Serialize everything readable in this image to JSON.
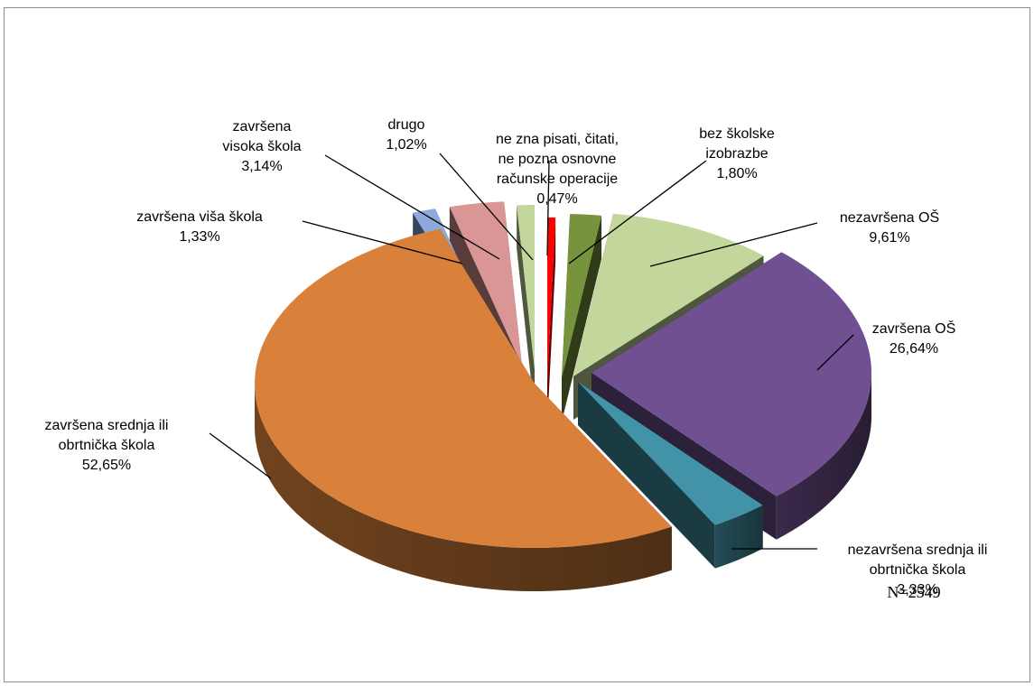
{
  "chart_data": {
    "type": "pie",
    "style": "3d-exploded",
    "note": "N=2549",
    "slices": [
      {
        "key": "ne_zna",
        "lines": [
          "ne zna pisati, čitati,",
          "ne pozna osnovne",
          "računske operacije",
          "0,47%"
        ],
        "value": 0.47,
        "color": "#ff0000"
      },
      {
        "key": "bez_skolske",
        "lines": [
          "bez školske",
          "izobrazbe",
          "1,80%"
        ],
        "value": 1.8,
        "color": "#77933c"
      },
      {
        "key": "nezavrsena_os",
        "lines": [
          "nezavršena OŠ",
          "9,61%"
        ],
        "value": 9.61,
        "color": "#c3d69b"
      },
      {
        "key": "zavrsena_os",
        "lines": [
          "završena OŠ",
          "26,64%"
        ],
        "value": 26.64,
        "color": "#705090"
      },
      {
        "key": "nezavrsena_srednja",
        "lines": [
          "nezavršena srednja ili",
          "obrtnička škola",
          "3,33%"
        ],
        "value": 3.33,
        "color": "#4393a8"
      },
      {
        "key": "zavrsena_srednja",
        "lines": [
          "završena srednja ili",
          "obrtnička škola",
          "52,65%"
        ],
        "value": 52.65,
        "color": "#d9813b"
      },
      {
        "key": "zavrsena_visa",
        "lines": [
          "završena viša škola",
          "1,33%"
        ],
        "value": 1.33,
        "color": "#8eaadb"
      },
      {
        "key": "zavrsena_visoka",
        "lines": [
          "završena",
          "visoka škola",
          "3,14%"
        ],
        "value": 3.14,
        "color": "#d99694"
      },
      {
        "key": "drugo",
        "lines": [
          "drugo",
          "1,02%"
        ],
        "value": 1.02,
        "color": "#c3d69b"
      }
    ]
  }
}
